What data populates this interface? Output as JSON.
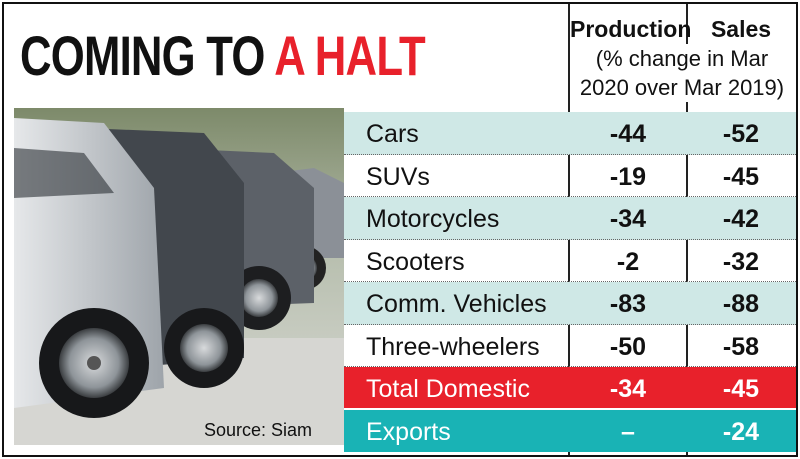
{
  "title": {
    "part1": "COMING TO",
    "part2": "A HALT"
  },
  "headers": {
    "production": "Production",
    "sales": "Sales",
    "note": "(% change in Mar 2020 over Mar 2019)"
  },
  "source": "Source: Siam",
  "colors": {
    "accent_red": "#e8212b",
    "teal": "#19b3b5",
    "light_teal": "#cfe8e6"
  },
  "chart_data": {
    "type": "table",
    "title": "COMING TO A HALT",
    "columns": [
      "Production",
      "Sales"
    ],
    "note": "(% change in Mar 2020 over Mar 2019)",
    "rows": [
      {
        "label": "Cars",
        "production": "-44",
        "sales": "-52"
      },
      {
        "label": "SUVs",
        "production": "-19",
        "sales": "-45"
      },
      {
        "label": "Motorcycles",
        "production": "-34",
        "sales": "-42"
      },
      {
        "label": "Scooters",
        "production": "-2",
        "sales": "-32"
      },
      {
        "label": "Comm. Vehicles",
        "production": "-83",
        "sales": "-88"
      },
      {
        "label": "Three-wheelers",
        "production": "-50",
        "sales": "-58"
      },
      {
        "label": "Total Domestic",
        "production": "-34",
        "sales": "-45"
      },
      {
        "label": "Exports",
        "production": "–",
        "sales": "-24"
      }
    ],
    "source": "Source: Siam"
  }
}
